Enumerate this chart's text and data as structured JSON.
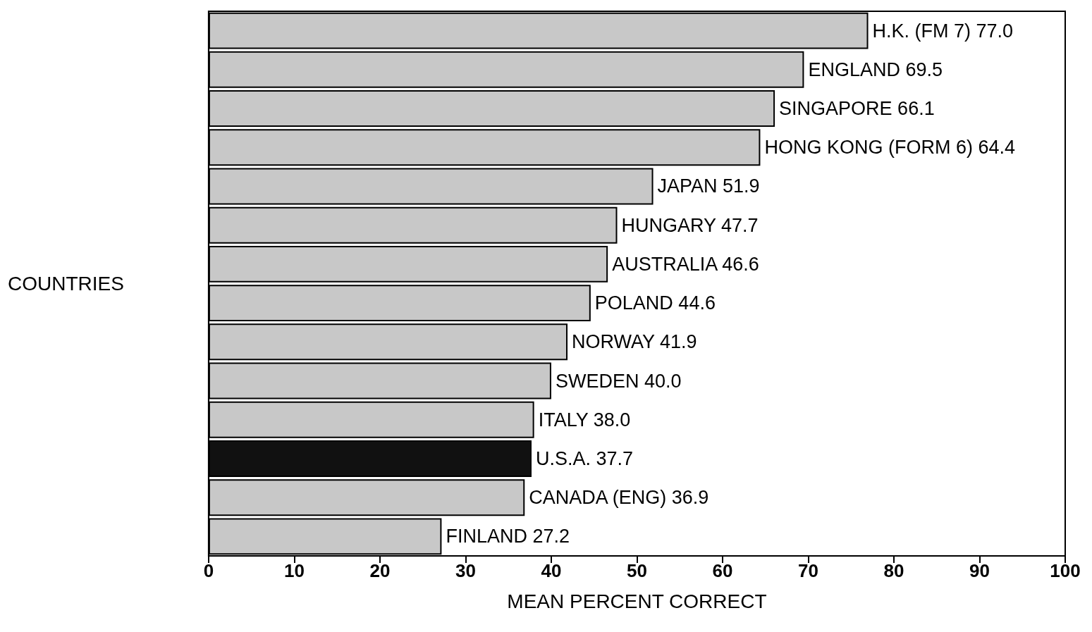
{
  "chart_data": {
    "type": "bar",
    "orientation": "horizontal",
    "xlabel": "MEAN PERCENT CORRECT",
    "ylabel": "COUNTRIES",
    "categories": [
      "H.K. (FM 7)",
      "ENGLAND",
      "SINGAPORE",
      "HONG KONG (FORM 6)",
      "JAPAN",
      "HUNGARY",
      "AUSTRALIA",
      "POLAND",
      "NORWAY",
      "SWEDEN",
      "ITALY",
      "U.S.A.",
      "CANADA (ENG)",
      "FINLAND"
    ],
    "values": [
      77.0,
      69.5,
      66.1,
      64.4,
      51.9,
      47.7,
      46.6,
      44.6,
      41.9,
      40.0,
      38.0,
      37.7,
      36.9,
      27.2
    ],
    "value_labels": [
      "77.0",
      "69.5",
      "66.1",
      "64.4",
      "51.9",
      "47.7",
      "46.6",
      "44.6",
      "41.9",
      "40.0",
      "38.0",
      "37.7",
      "36.9",
      "27.2"
    ],
    "colors": [
      "#c8c8c8",
      "#c8c8c8",
      "#c8c8c8",
      "#c8c8c8",
      "#c8c8c8",
      "#c8c8c8",
      "#c8c8c8",
      "#c8c8c8",
      "#c8c8c8",
      "#c8c8c8",
      "#c8c8c8",
      "#111111",
      "#c8c8c8",
      "#c8c8c8"
    ],
    "xlim": [
      0,
      100
    ],
    "xticks": [
      0,
      10,
      20,
      30,
      40,
      50,
      60,
      70,
      80,
      90,
      100
    ],
    "tick_labels": "x",
    "grid": false
  }
}
